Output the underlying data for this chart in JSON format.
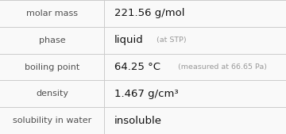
{
  "rows": [
    {
      "label": "molar mass",
      "value": "221.56 g/mol",
      "value2": null,
      "annot": null
    },
    {
      "label": "phase",
      "value": "liquid",
      "value2": null,
      "annot": "(at STP)"
    },
    {
      "label": "boiling point",
      "value": "64.25 °C",
      "value2": null,
      "annot": "(measured at 66.65 Pa)"
    },
    {
      "label": "density",
      "value": "1.467 g/cm³",
      "value2": null,
      "annot": null
    },
    {
      "label": "solubility in water",
      "value": "insoluble",
      "value2": null,
      "annot": null
    }
  ],
  "col_split": 0.365,
  "bg_color": "#f9f9f9",
  "line_color": "#cccccc",
  "label_color": "#505050",
  "value_color": "#111111",
  "annot_color": "#999999",
  "label_fontsize": 8.0,
  "value_fontsize": 9.5,
  "annot_fontsize": 6.8
}
